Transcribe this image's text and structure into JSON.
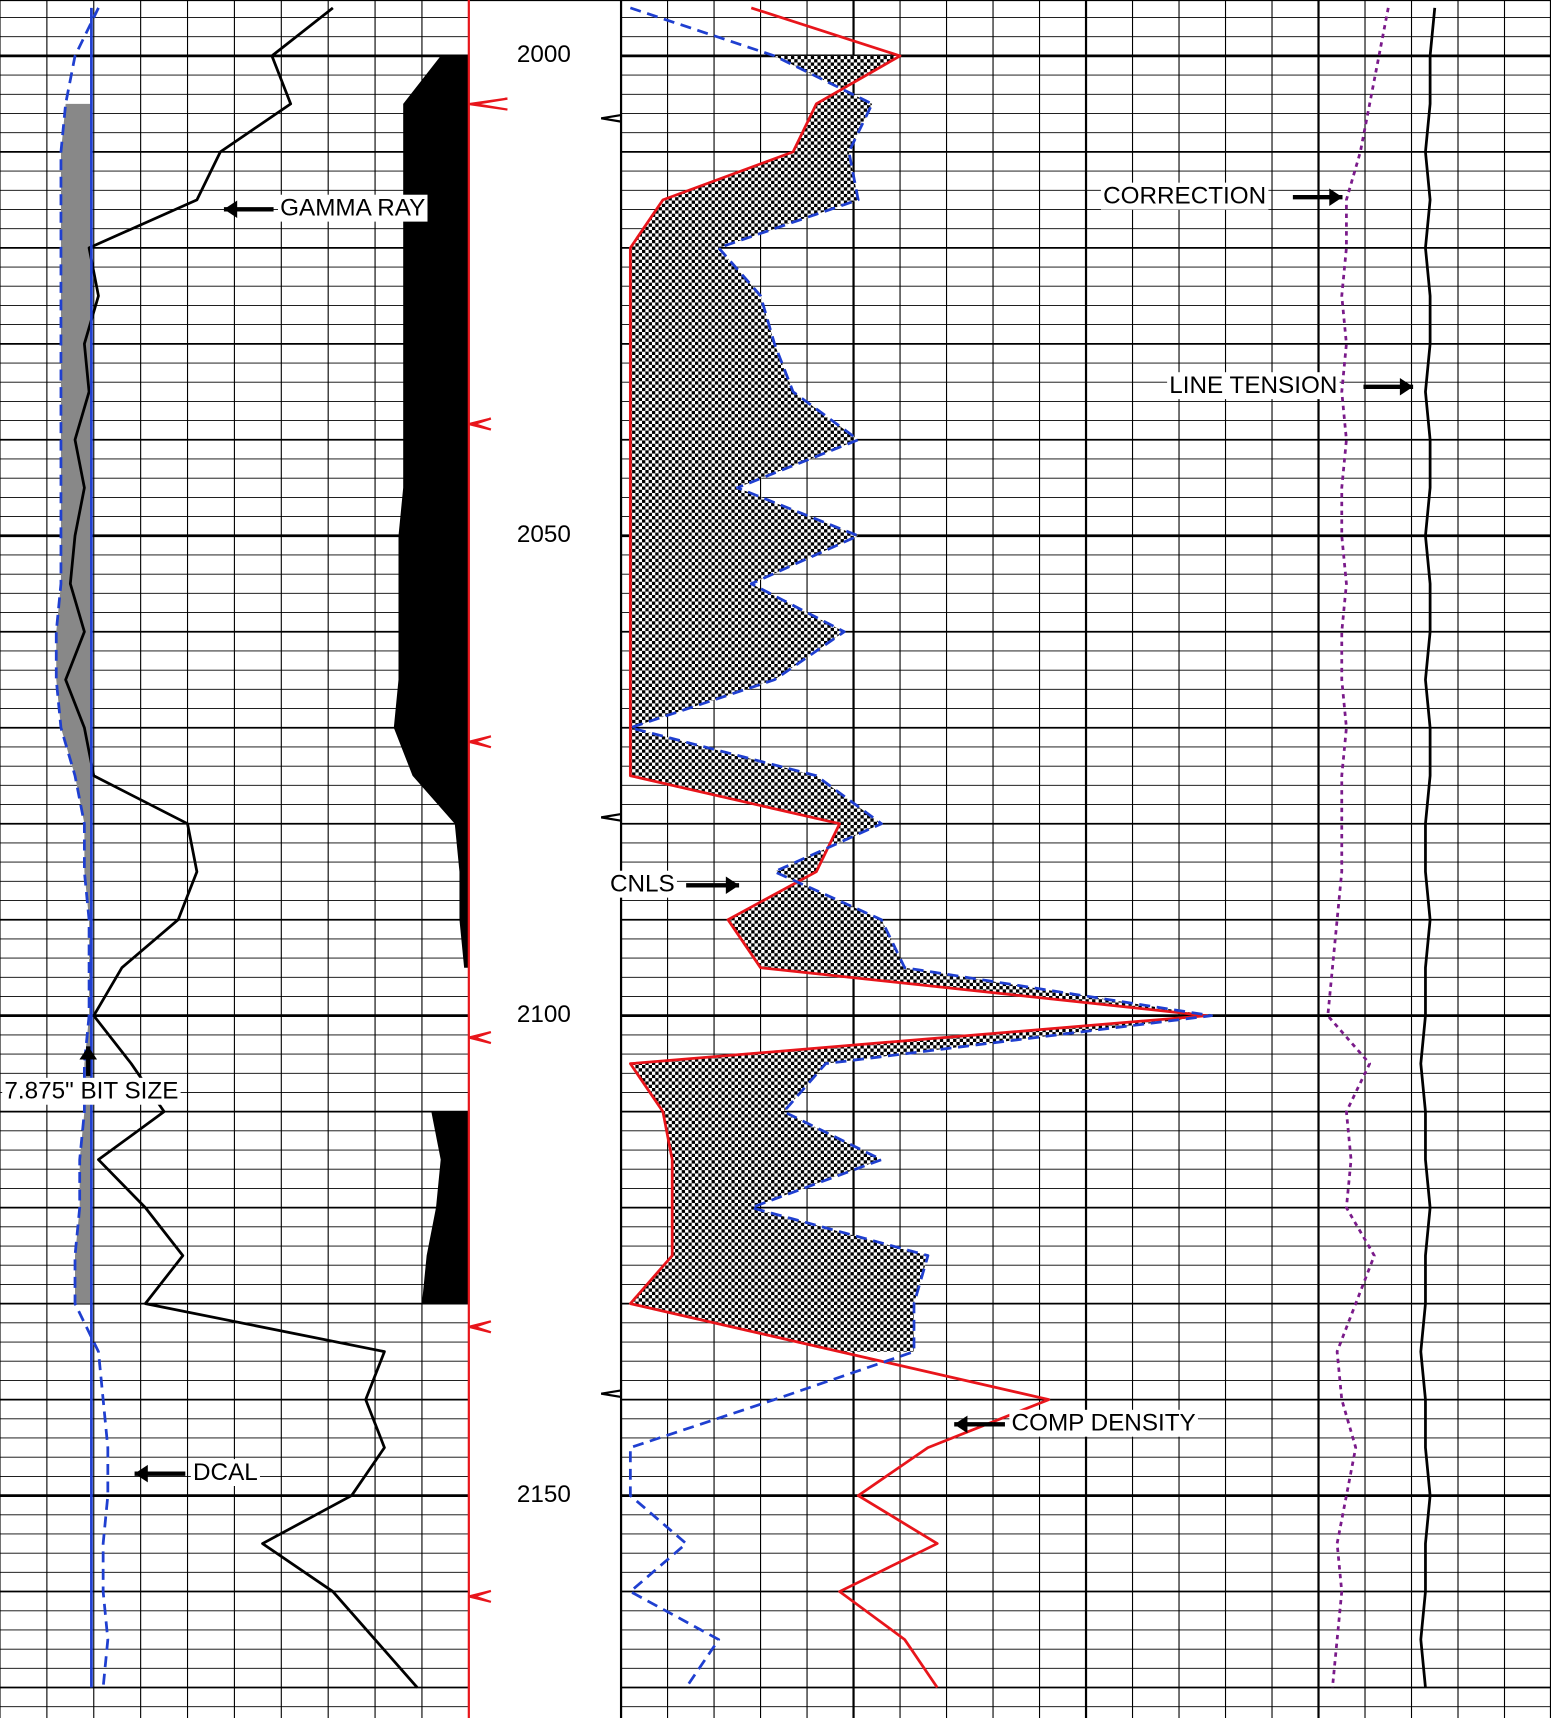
{
  "chart_data": {
    "type": "well-log",
    "depth": [
      1995,
      2000,
      2005,
      2010,
      2015,
      2020,
      2025,
      2030,
      2035,
      2040,
      2045,
      2050,
      2055,
      2060,
      2065,
      2070,
      2075,
      2080,
      2085,
      2090,
      2095,
      2100,
      2105,
      2110,
      2115,
      2120,
      2125,
      2130,
      2135,
      2140,
      2145,
      2150,
      2155,
      2160,
      2165,
      2170
    ],
    "ylim": [
      1995,
      2173
    ],
    "yticks": [
      2000,
      2050,
      2100,
      2150
    ],
    "tracks": [
      {
        "xlim": [
          0,
          10
        ]
      },
      {
        "xlim": [
          0,
          20
        ]
      }
    ],
    "grid": true,
    "series": [
      {
        "name": "GAMMA RAY",
        "color": "#000000",
        "style": "solid",
        "track": 0,
        "values": [
          7.1,
          5.8,
          6.2,
          4.7,
          4.2,
          1.9,
          2.1,
          1.8,
          1.9,
          1.6,
          1.8,
          1.6,
          1.5,
          1.8,
          1.4,
          1.8,
          2.0,
          4.0,
          4.2,
          3.8,
          2.6,
          2.0,
          2.8,
          3.5,
          2.1,
          3.1,
          3.9,
          3.1,
          8.2,
          7.8,
          8.2,
          7.5,
          5.6,
          7.1,
          8.0,
          8.9
        ]
      },
      {
        "name": "DCAL",
        "color": "#1f3fd0",
        "style": "dashed",
        "track": 0,
        "values": [
          2.1,
          1.6,
          1.4,
          1.3,
          1.3,
          1.3,
          1.3,
          1.3,
          1.3,
          1.3,
          1.3,
          1.3,
          1.3,
          1.2,
          1.2,
          1.3,
          1.6,
          1.8,
          1.8,
          1.9,
          1.9,
          1.9,
          1.8,
          1.8,
          1.7,
          1.7,
          1.6,
          1.6,
          2.1,
          2.2,
          2.3,
          2.3,
          2.2,
          2.2,
          2.3,
          2.2
        ]
      },
      {
        "name": "7.875\" BIT SIZE",
        "color": "#1f3fd0",
        "style": "solid",
        "track": 0,
        "values": [
          1.95,
          1.95,
          1.95,
          1.95,
          1.95,
          1.95,
          1.95,
          1.95,
          1.95,
          1.95,
          1.95,
          1.95,
          1.95,
          1.95,
          1.95,
          1.95,
          1.95,
          1.95,
          1.95,
          1.95,
          1.95,
          1.95,
          1.95,
          1.95,
          1.95,
          1.95,
          1.95,
          1.95,
          1.95,
          1.95,
          1.95,
          1.95,
          1.95,
          1.95,
          1.95,
          1.95
        ]
      },
      {
        "color": "#000000",
        "style": "fill-right",
        "track": 0,
        "values": [
          null,
          9.4,
          8.6,
          8.6,
          8.6,
          8.6,
          8.6,
          8.6,
          8.6,
          8.6,
          8.6,
          8.5,
          8.5,
          8.5,
          8.5,
          8.4,
          8.8,
          9.7,
          9.8,
          9.8,
          9.9,
          null,
          null,
          9.2,
          9.4,
          9.3,
          9.1,
          9.0,
          null,
          null,
          null,
          null,
          null,
          null,
          null,
          null
        ]
      },
      {
        "name": "COMP DENSITY",
        "color": "#e8151b",
        "style": "solid",
        "track": 1,
        "values": [
          2.8,
          6.0,
          4.2,
          3.7,
          0.9,
          0.2,
          0.2,
          0.2,
          0.2,
          0.2,
          0.2,
          0.2,
          0.2,
          0.2,
          0.2,
          0.2,
          0.2,
          4.7,
          4.2,
          2.3,
          3.0,
          12.6,
          0.2,
          0.9,
          1.1,
          1.1,
          1.1,
          0.2,
          4.7,
          9.2,
          6.6,
          5.1,
          6.8,
          4.7,
          6.1,
          6.8
        ]
      },
      {
        "name": "CNLS",
        "color": "#1f3fd0",
        "style": "dashed",
        "track": 1,
        "values": [
          0.2,
          3.3,
          5.4,
          4.9,
          5.1,
          2.1,
          3.0,
          3.3,
          3.7,
          5.1,
          2.5,
          5.1,
          2.8,
          4.8,
          3.3,
          0.2,
          4.2,
          5.6,
          3.3,
          5.6,
          6.1,
          12.7,
          4.4,
          3.5,
          5.6,
          2.8,
          6.6,
          6.3,
          6.3,
          3.3,
          0.2,
          0.2,
          1.4,
          0.2,
          2.1,
          1.4
        ]
      },
      {
        "name": "CORRECTION",
        "color": "#7a1a8a",
        "style": "dotted",
        "track": 1,
        "values": [
          16.5,
          16.3,
          16.1,
          15.9,
          15.6,
          15.6,
          15.5,
          15.6,
          15.5,
          15.6,
          15.5,
          15.5,
          15.6,
          15.5,
          15.5,
          15.6,
          15.5,
          15.5,
          15.5,
          15.4,
          15.3,
          15.2,
          16.1,
          15.6,
          15.7,
          15.6,
          16.2,
          15.8,
          15.4,
          15.5,
          15.8,
          15.6,
          15.4,
          15.5,
          15.4,
          15.3
        ]
      },
      {
        "name": "LINE TENSION",
        "color": "#000000",
        "style": "solid",
        "track": 1,
        "values": [
          17.5,
          17.4,
          17.4,
          17.3,
          17.4,
          17.3,
          17.4,
          17.4,
          17.3,
          17.4,
          17.4,
          17.3,
          17.4,
          17.4,
          17.3,
          17.4,
          17.4,
          17.3,
          17.3,
          17.4,
          17.3,
          17.3,
          17.2,
          17.3,
          17.3,
          17.4,
          17.3,
          17.3,
          17.2,
          17.3,
          17.3,
          17.4,
          17.3,
          17.3,
          17.2,
          17.3
        ]
      }
    ]
  }
}
